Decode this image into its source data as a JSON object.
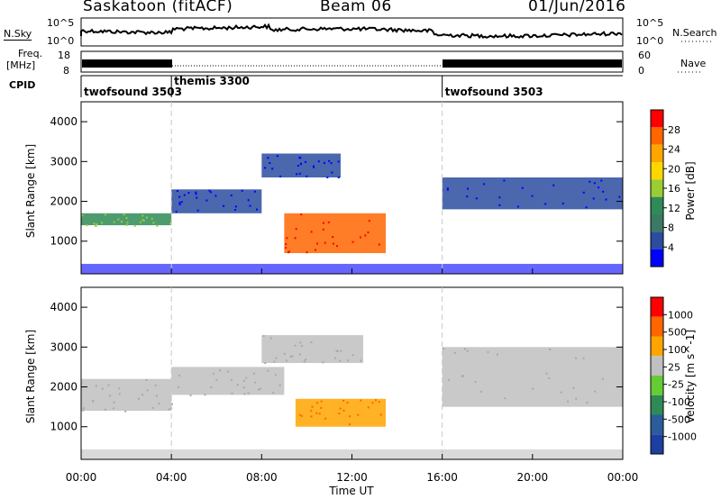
{
  "header": {
    "station": "Saskatoon (fitACF)",
    "beam": "Beam 06",
    "date": "01/Jun/2016"
  },
  "top_panels": {
    "nsky_label": "N.Sky",
    "nsearch_label": "N.Search",
    "freq_label_1": "Freq.",
    "freq_label_2": "[MHz]",
    "nave_label": "Nave",
    "cpid_label": "CPID",
    "noise_ticks_left": [
      "10^5",
      "10^0"
    ],
    "noise_ticks_right": [
      "10^5",
      "10^0"
    ],
    "freq_ticks": [
      "18",
      "8"
    ],
    "nave_ticks": [
      "60",
      "0"
    ]
  },
  "cpid_segments": [
    {
      "name": "twofsound 3503",
      "start": 0,
      "end": 4
    },
    {
      "name": "themis 3300",
      "start": 4,
      "end": 16
    },
    {
      "name": "twofsound 3503",
      "start": 16,
      "end": 24
    }
  ],
  "axes": {
    "x_label": "Time UT",
    "x_ticks": [
      "00:00",
      "04:00",
      "08:00",
      "12:00",
      "16:00",
      "20:00",
      "00:00"
    ],
    "y_label": "Slant Range [km]",
    "y_ticks": [
      "1000",
      "2000",
      "3000",
      "4000"
    ]
  },
  "colorbars": {
    "power": {
      "label": "Power [dB]",
      "ticks": [
        "28",
        "24",
        "20",
        "16",
        "12",
        "8",
        "4"
      ],
      "colors": [
        "#0000ff",
        "#2c4ca0",
        "#3a7a63",
        "#2e8b57",
        "#9acd32",
        "#ffd700",
        "#ffa500",
        "#ff6600",
        "#ff0000"
      ]
    },
    "velocity": {
      "label": "Velocity [m s^-1]",
      "ticks": [
        "1000",
        "500",
        "100",
        "25",
        "-25",
        "-100",
        "-500",
        "-1000"
      ],
      "colors": [
        "#1f3fa0",
        "#2c5c9c",
        "#2e8b57",
        "#66cc33",
        "#c0c0c0",
        "#ffa500",
        "#ff6600",
        "#ff0000"
      ]
    }
  },
  "chart_data": [
    {
      "type": "heatmap",
      "title": "Power",
      "xlabel": "Time UT",
      "ylabel": "Slant Range [km]",
      "xlim": [
        0,
        24
      ],
      "ylim": [
        180,
        4500
      ],
      "colorbar_label": "Power [dB]",
      "colorbar_range": [
        0,
        30
      ],
      "bands": [
        {
          "t_start": 0.0,
          "t_end": 4.0,
          "range_start": 1400,
          "range_end": 1700,
          "level": "mid-high"
        },
        {
          "t_start": 4.0,
          "t_end": 8.0,
          "range_start": 1700,
          "range_end": 2300,
          "level": "mid"
        },
        {
          "t_start": 8.0,
          "t_end": 11.5,
          "range_start": 2600,
          "range_end": 3200,
          "level": "mid"
        },
        {
          "t_start": 9.0,
          "t_end": 13.5,
          "range_start": 700,
          "range_end": 1700,
          "level": "high"
        },
        {
          "t_start": 16.0,
          "t_end": 24.0,
          "range_start": 1800,
          "range_end": 2600,
          "level": "mid"
        }
      ]
    },
    {
      "type": "heatmap",
      "title": "Velocity",
      "xlabel": "Time UT",
      "ylabel": "Slant Range [km]",
      "xlim": [
        0,
        24
      ],
      "ylim": [
        180,
        4500
      ],
      "colorbar_label": "Velocity [m s^-1]",
      "colorbar_range": [
        -1000,
        1000
      ],
      "bands": [
        {
          "t_start": 0.0,
          "t_end": 4.0,
          "range_start": 1400,
          "range_end": 2200,
          "velocity_class": "ground"
        },
        {
          "t_start": 4.0,
          "t_end": 9.0,
          "range_start": 1800,
          "range_end": 2500,
          "velocity_class": "ground"
        },
        {
          "t_start": 8.0,
          "t_end": 12.5,
          "range_start": 2600,
          "range_end": 3300,
          "velocity_class": "ground"
        },
        {
          "t_start": 9.5,
          "t_end": 13.5,
          "range_start": 1000,
          "range_end": 1700,
          "velocity_class": "-100 to -500"
        },
        {
          "t_start": 16.0,
          "t_end": 24.0,
          "range_start": 1500,
          "range_end": 3000,
          "velocity_class": "ground"
        }
      ]
    }
  ]
}
